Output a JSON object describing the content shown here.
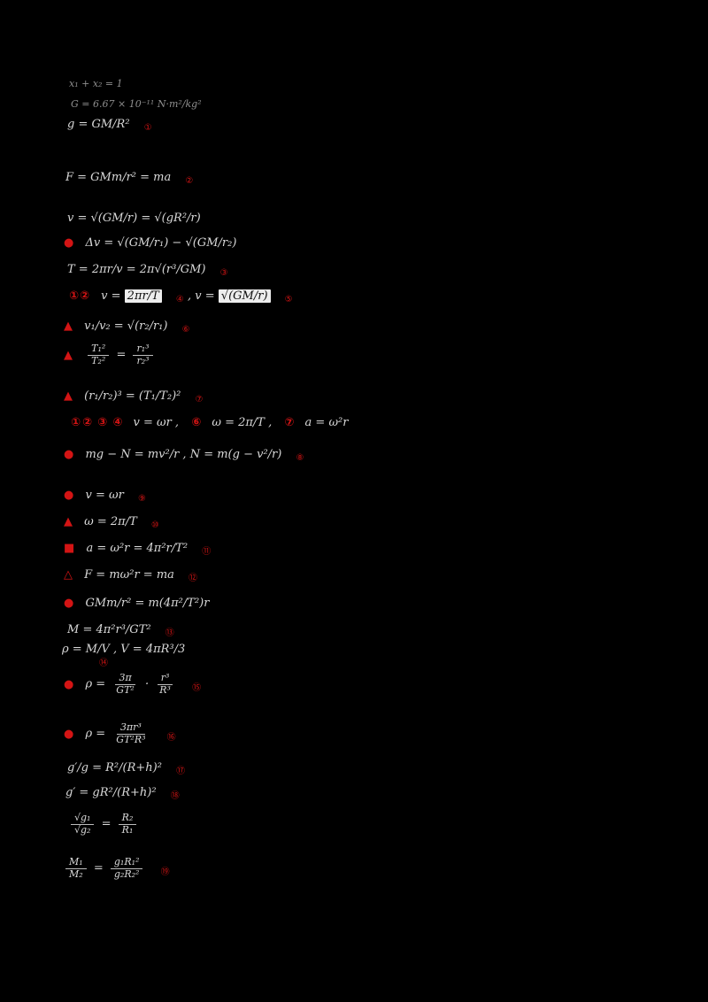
{
  "lines": {
    "l1": {
      "text": "x₁ + x₂ = 1"
    },
    "l2": {
      "text": "G = 6.67 × 10⁻¹¹ N·m²/kg²"
    },
    "l3": {
      "text": "g = GM/R²",
      "tag": "①"
    },
    "l4": {
      "text": "F = GMm/r² = ma",
      "tag": "②"
    },
    "l5": {
      "text": "v = √(GM/r) = √(gR²/r)"
    },
    "l6": {
      "lead": "●",
      "text": "Δv = √(GM/r₁) − √(GM/r₂)"
    },
    "l7": {
      "text": "T = 2πr/v = 2π√(r³/GM)",
      "tag": "③"
    },
    "l8": {
      "lead": "①②",
      "a": "v =",
      "b": "2πr/T",
      "tag1": "④",
      "c": ",  v =",
      "d": "√(GM/r)",
      "tag2": "⑤"
    },
    "l9": {
      "lead": "▲",
      "text": "v₁/v₂ = √(r₂/r₁)",
      "tag": "⑥"
    },
    "l10": {
      "lead": "▲",
      "f1n": "T₁²",
      "f1d": "T₂²",
      "mid": "=",
      "f2n": "r₁³",
      "f2d": "r₂³"
    },
    "l11": {
      "lead": "▲",
      "text": "(r₁/r₂)³ = (T₁/T₂)²",
      "tag": "⑦"
    },
    "l12": {
      "c1": "①②",
      "c2": "③",
      "c3": "④",
      "t1": "v = ωr ,",
      "c4": "⑥",
      "t2": "ω = 2π/T ,",
      "c5": "⑦",
      "t3": "a = ω²r"
    },
    "l13": {
      "lead": "●",
      "text": "mg − N = mv²/r ,  N = m(g − v²/r)",
      "tag": "⑧"
    },
    "l14": {
      "lead": "●",
      "text": "v = ωr",
      "tag": "⑨"
    },
    "l15": {
      "lead": "▲",
      "text": "ω = 2π/T",
      "tag": "⑩"
    },
    "l16": {
      "lead": "■",
      "text": "a = ω²r = 4π²r/T²",
      "tag": "⑪"
    },
    "l17": {
      "lead": "△",
      "text": "F = mω²r = ma",
      "tag": "⑫"
    },
    "l18": {
      "lead": "●",
      "text": "GMm/r² = m(4π²/T²)r"
    },
    "l19": {
      "text": "M = 4π²r³/GT²",
      "tag": "⑬"
    },
    "l20": {
      "text": "ρ = M/V ,  V = 4πR³/3",
      "tag": "⑭"
    },
    "l21": {
      "lead": "●",
      "pre": "ρ =",
      "f1n": "3π",
      "f1d": "GT²",
      "mid": "·",
      "f2n": "r³",
      "f2d": "R³",
      "tag": "⑮"
    },
    "l22": {
      "lead": "●",
      "pre": "ρ =",
      "f1n": "3πr³",
      "f1d": "GT²R³",
      "tag": "⑯"
    },
    "l23": {
      "text": "g′/g = R²/(R+h)²",
      "tag": "⑰"
    },
    "l24": {
      "text": "g′ = gR²/(R+h)²",
      "tag": "⑱"
    },
    "l25": {
      "f1n": "√g₁",
      "f1d": "√g₂",
      "mid": "=",
      "f2n": "R₂",
      "f2d": "R₁"
    },
    "l26": {
      "f1n": "M₁",
      "f1d": "M₂",
      "mid": "=",
      "f2n": "g₁R₁²",
      "f2d": "g₂R₂²",
      "tag": "⑲"
    }
  },
  "colors": {
    "background": "#000000",
    "formula_text": "#d9d9d9",
    "dim_text": "#8f8f8f",
    "marker_red": "#d31414",
    "highlight_bg": "#ededed"
  }
}
